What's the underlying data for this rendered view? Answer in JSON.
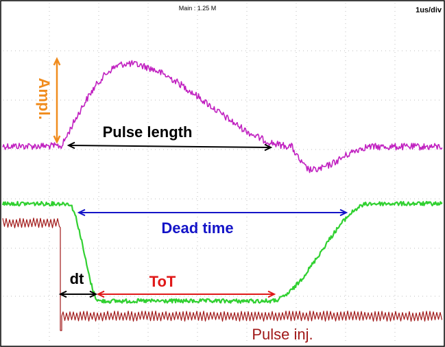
{
  "header": {
    "main_label": "Main : 1.25 M",
    "timebase": "1us/div"
  },
  "colors": {
    "analog": "#c020c0",
    "digital": "#30d030",
    "injection": "#a01818",
    "ampl": "#f08c1e",
    "pulse_length": "#000000",
    "dead_time": "#1414c8",
    "tot": "#e01818",
    "dt": "#000000",
    "grid": "#bdbdbd"
  },
  "chart_data": {
    "type": "line",
    "title": "",
    "xlabel": "",
    "ylabel": "",
    "grid": true,
    "series": [
      {
        "name": "",
        "color": "#c020c0"
      },
      {
        "name": "",
        "color": "#30d030"
      },
      {
        "name": "Pulse inj.",
        "color": "#a01818"
      }
    ],
    "annotations": [
      {
        "id": "ampl",
        "text": "Ampl."
      },
      {
        "id": "pulse_length",
        "text": "Pulse length"
      },
      {
        "id": "dead_time",
        "text": "Dead time"
      },
      {
        "id": "dt",
        "text": "dt"
      },
      {
        "id": "tot",
        "text": "ToT"
      },
      {
        "id": "pulse_inj",
        "text": "Pulse inj."
      }
    ]
  }
}
